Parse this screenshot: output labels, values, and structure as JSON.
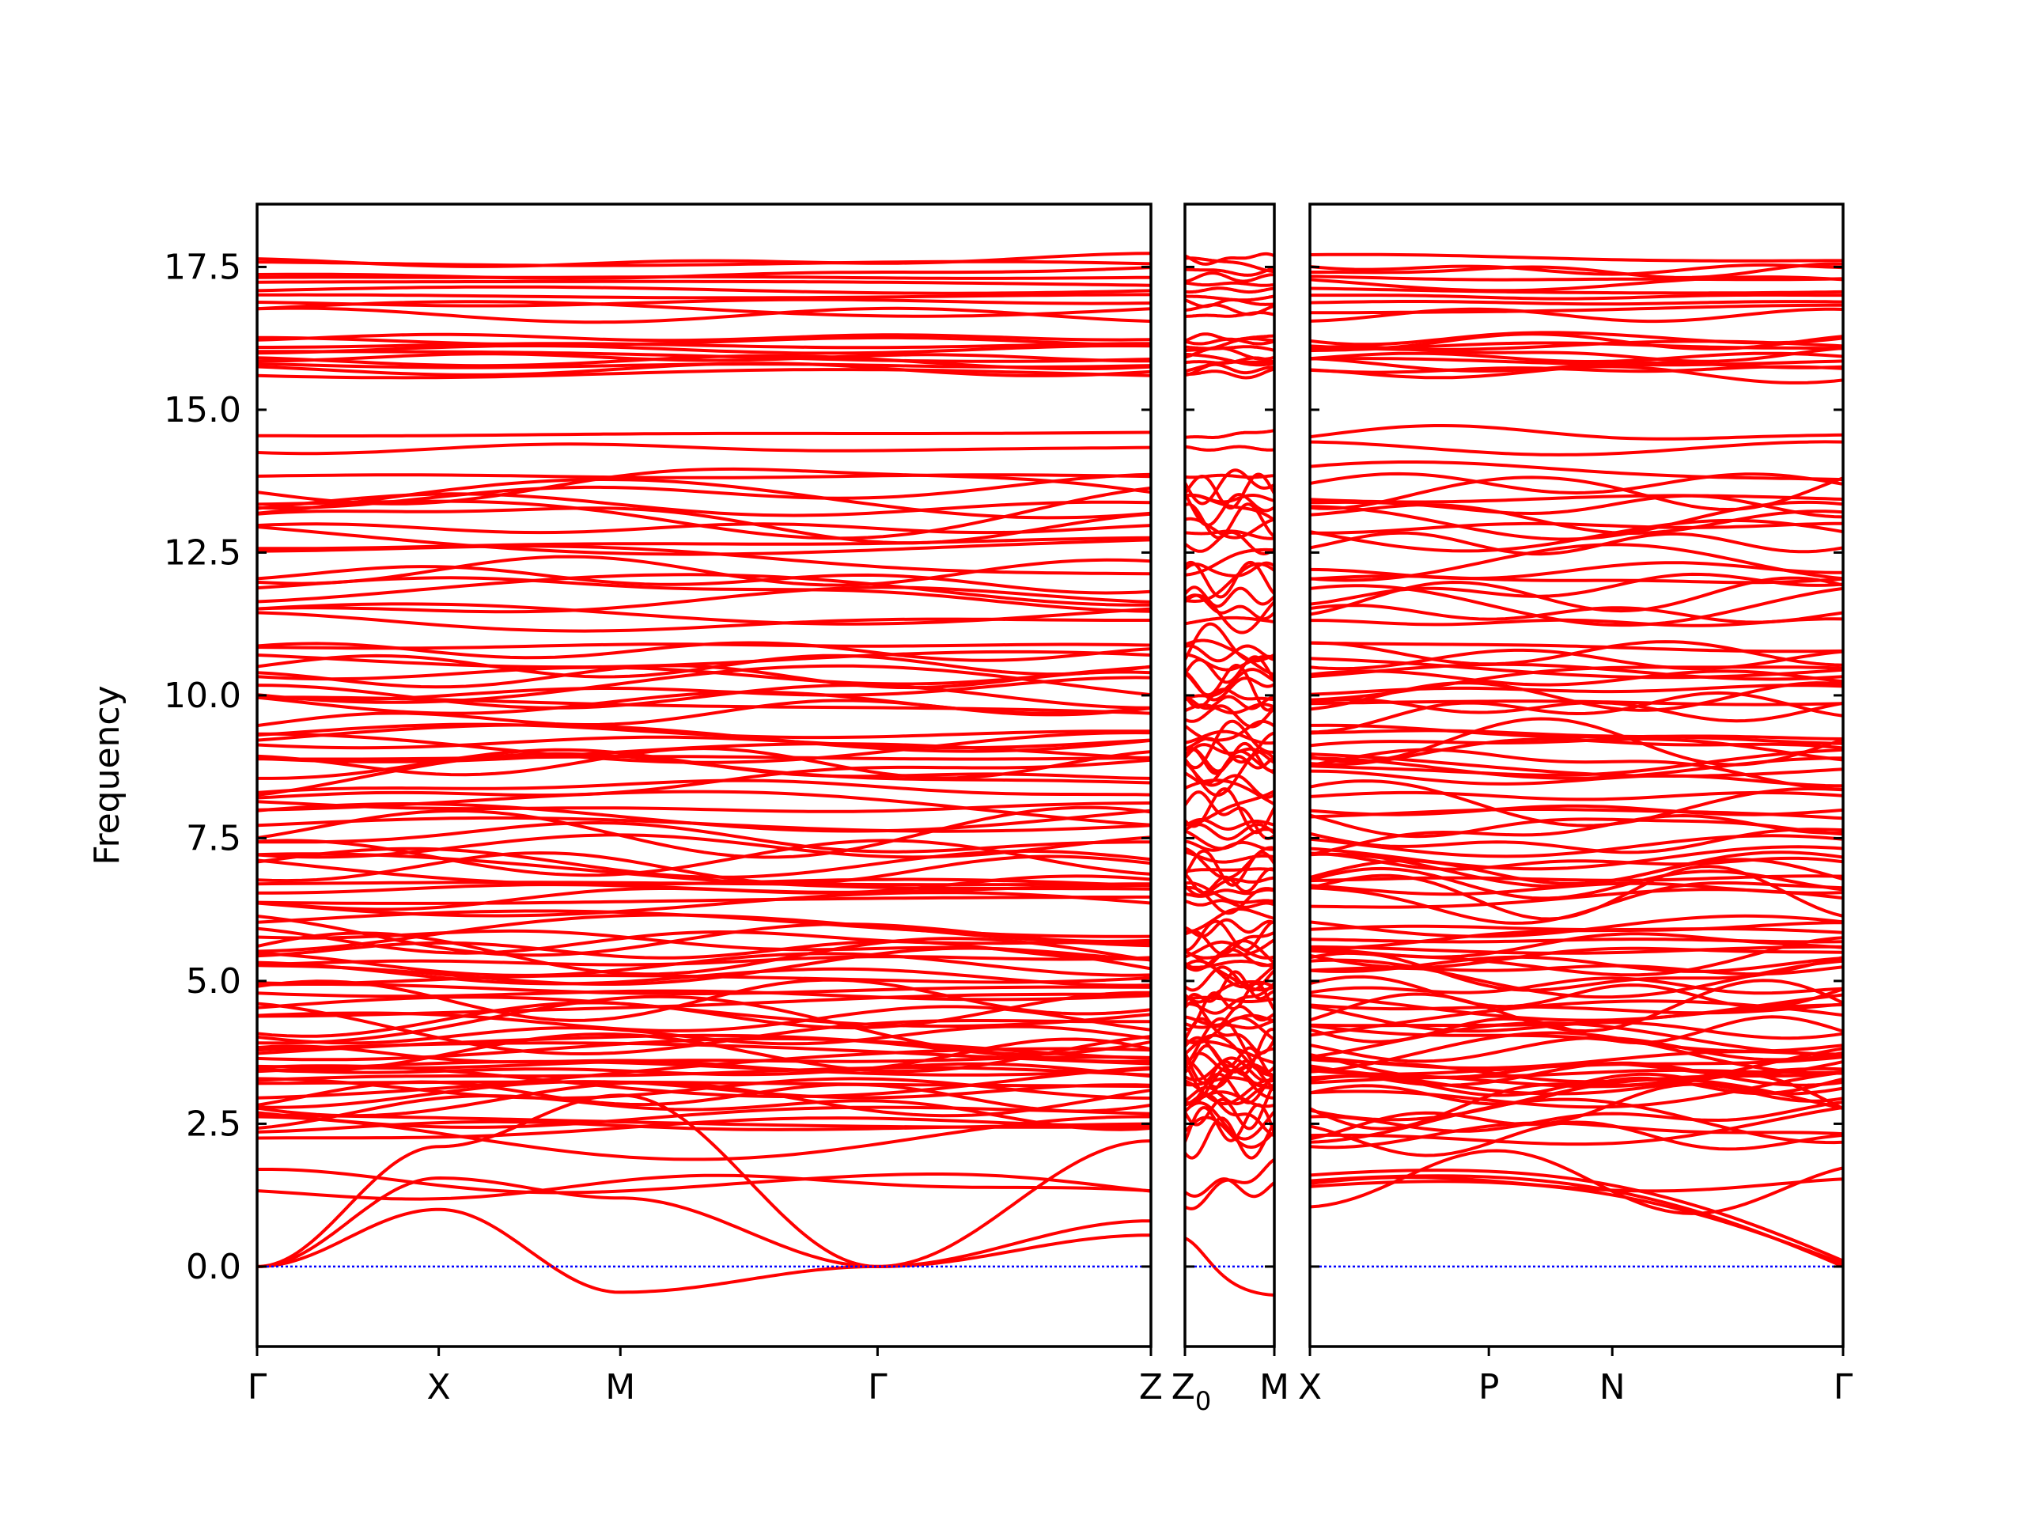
{
  "chart_data": {
    "type": "line",
    "title": "",
    "ylabel": "Frequency",
    "ylim": [
      -1.4,
      18.6
    ],
    "yticks": [
      0.0,
      2.5,
      5.0,
      7.5,
      10.0,
      12.5,
      15.0,
      17.5
    ],
    "ytick_labels": [
      "0.0",
      "2.5",
      "5.0",
      "7.5",
      "10.0",
      "12.5",
      "15.0",
      "17.5"
    ],
    "grid": false,
    "legend": "none",
    "band_color": "#ff0000",
    "zero_line_color": "#0000ff",
    "panels": [
      {
        "x_range": [
          0.0,
          4.97
        ],
        "ticks": [
          0.0,
          1.01,
          2.02,
          3.45,
          4.97
        ],
        "tick_labels": [
          "Γ",
          "X",
          "M",
          "Γ",
          "Z"
        ]
      },
      {
        "x_range": [
          5.17,
          5.67
        ],
        "ticks": [
          5.17,
          5.67
        ],
        "tick_labels": [
          "Z0",
          "M"
        ]
      },
      {
        "x_range": [
          5.87,
          8.85
        ],
        "ticks": [
          5.87,
          6.87,
          7.56,
          8.85
        ],
        "tick_labels": [
          "X",
          "P",
          "N",
          "Γ"
        ]
      }
    ],
    "tick_label_rendering": {
      "Z0": {
        "main": "Z",
        "subscript": "0"
      }
    },
    "series_note_count": 120,
    "representative_bands": [
      {
        "name": "acoustic-1",
        "x": [
          0.0,
          1.01,
          2.02,
          3.45,
          4.97
        ],
        "values": [
          0.0,
          1.0,
          -0.45,
          0.0,
          0.55
        ]
      },
      {
        "name": "acoustic-2",
        "x": [
          0.0,
          1.01,
          2.02,
          3.45,
          4.97
        ],
        "values": [
          0.0,
          1.55,
          1.2,
          0.0,
          0.8
        ]
      },
      {
        "name": "acoustic-3",
        "x": [
          0.0,
          1.01,
          2.02,
          3.45,
          4.97
        ],
        "values": [
          0.0,
          2.1,
          3.0,
          0.0,
          2.2
        ]
      },
      {
        "name": "flat-top",
        "x": [
          0.0,
          1.01,
          2.02,
          3.45,
          4.97
        ],
        "values": [
          17.55,
          17.6,
          17.65,
          17.55,
          17.6
        ]
      },
      {
        "name": "flat-15",
        "x": [
          0.0,
          1.01,
          2.02,
          3.45,
          4.97
        ],
        "values": [
          14.6,
          14.6,
          14.65,
          14.6,
          14.6
        ]
      }
    ]
  }
}
